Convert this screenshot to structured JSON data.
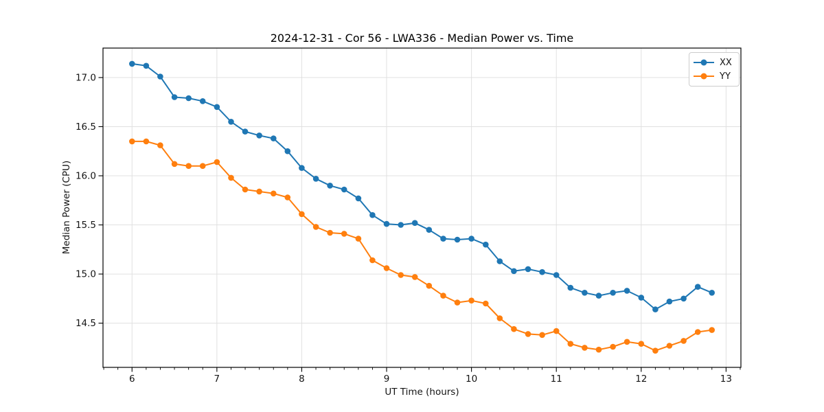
{
  "chart_data": {
    "type": "line",
    "title": "2024-12-31 - Cor 56 - LWA336 - Median Power vs. Time",
    "xlabel": "UT Time (hours)",
    "ylabel": "Median Power (CPU)",
    "legend_position": "upper right",
    "grid": true,
    "grid_color": "#e0e0e0",
    "background_color": "#ffffff",
    "xlim": [
      5.658,
      13.175
    ],
    "ylim": [
      14.05,
      17.3
    ],
    "xticks": [
      6,
      7,
      8,
      9,
      10,
      11,
      12,
      13
    ],
    "xtick_labels": [
      "6",
      "7",
      "8",
      "9",
      "10",
      "11",
      "12",
      "13"
    ],
    "yticks": [
      14.5,
      15.0,
      15.5,
      16.0,
      16.5,
      17.0
    ],
    "ytick_labels": [
      "14.5",
      "15.0",
      "15.5",
      "16.0",
      "16.5",
      "17.0"
    ],
    "minor_xtick_step_hours": 0.1666667,
    "x": [
      6.0,
      6.167,
      6.333,
      6.5,
      6.667,
      6.833,
      7.0,
      7.167,
      7.333,
      7.5,
      7.667,
      7.833,
      8.0,
      8.167,
      8.333,
      8.5,
      8.667,
      8.833,
      9.0,
      9.167,
      9.333,
      9.5,
      9.667,
      9.833,
      10.0,
      10.167,
      10.333,
      10.5,
      10.667,
      10.833,
      11.0,
      11.167,
      11.333,
      11.5,
      11.667,
      11.833,
      12.0,
      12.167,
      12.333,
      12.5,
      12.667,
      12.833
    ],
    "series": [
      {
        "name": "XX",
        "color": "#1f77b4",
        "values": [
          17.14,
          17.12,
          17.01,
          16.8,
          16.79,
          16.76,
          16.7,
          16.55,
          16.45,
          16.41,
          16.38,
          16.25,
          16.08,
          15.97,
          15.9,
          15.86,
          15.77,
          15.6,
          15.51,
          15.5,
          15.52,
          15.45,
          15.36,
          15.35,
          15.36,
          15.3,
          15.13,
          15.03,
          15.05,
          15.02,
          14.99,
          14.86,
          14.81,
          14.78,
          14.81,
          14.83,
          14.76,
          14.64,
          14.72,
          14.75,
          14.87,
          14.81
        ]
      },
      {
        "name": "YY",
        "color": "#ff7f0e",
        "values": [
          16.35,
          16.35,
          16.31,
          16.12,
          16.1,
          16.1,
          16.14,
          15.98,
          15.86,
          15.84,
          15.82,
          15.78,
          15.61,
          15.48,
          15.42,
          15.41,
          15.36,
          15.14,
          15.06,
          14.99,
          14.97,
          14.88,
          14.78,
          14.71,
          14.73,
          14.7,
          14.55,
          14.44,
          14.39,
          14.38,
          14.42,
          14.29,
          14.25,
          14.23,
          14.26,
          14.31,
          14.29,
          14.22,
          14.27,
          14.32,
          14.41,
          14.43
        ]
      }
    ]
  }
}
